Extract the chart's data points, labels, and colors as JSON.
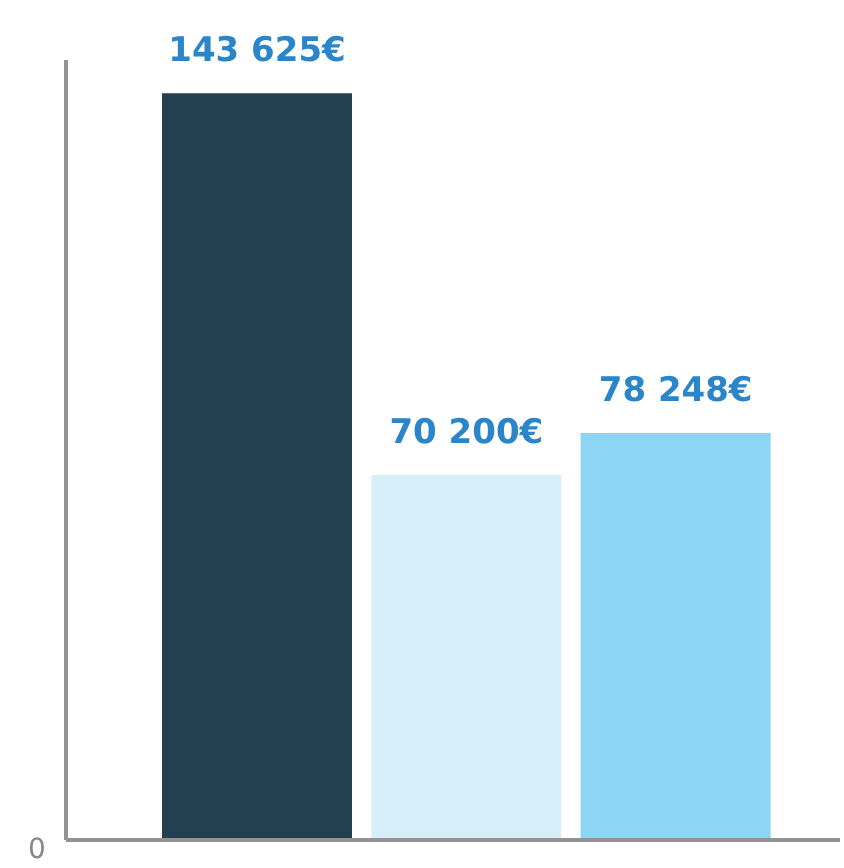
{
  "chart_data": {
    "type": "bar",
    "categories": [
      null,
      null,
      null
    ],
    "values": [
      143625,
      70200,
      78248
    ],
    "colors": [
      "#22404f",
      "#d6eff9",
      "#8dd5f5"
    ],
    "value_labels": [
      "143 625€",
      "70 200€",
      "78 248€"
    ],
    "annotations": [
      "0"
    ],
    "grid": false,
    "legend": false
  }
}
